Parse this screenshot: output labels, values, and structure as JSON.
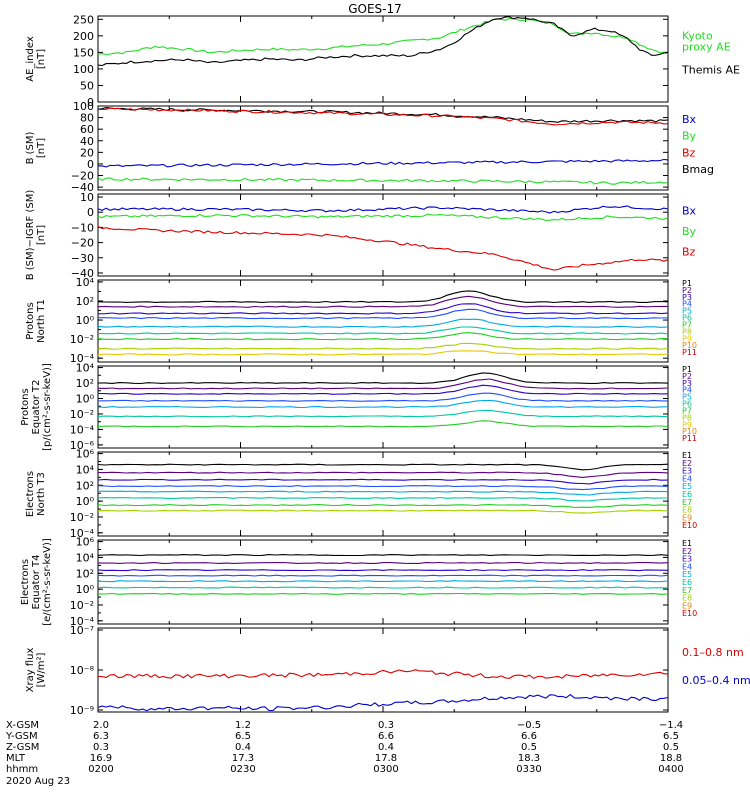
{
  "title": "GOES-17",
  "date_label": "2020 Aug 23",
  "colors": {
    "black": "#000000",
    "green": "#22dd22",
    "blue": "#0000cc",
    "red": "#dd0000",
    "p_series": [
      "#000000",
      "#5a0080",
      "#2a00c8",
      "#1f4fff",
      "#00a8e8",
      "#00c8a0",
      "#22cc22",
      "#a8d200",
      "#e8c800",
      "#f08000",
      "#c80000"
    ]
  },
  "chart_data": [
    {
      "id": "ae",
      "type": "line",
      "ylabel": "AE_index\n[nT]",
      "yscale": "linear",
      "ylim": [
        0,
        260
      ],
      "ticks": [
        "0",
        "50",
        "100",
        "150",
        "200",
        "250"
      ],
      "tick_values": [
        0,
        50,
        100,
        150,
        200,
        250
      ],
      "legend": [
        {
          "text": "Kyoto\nproxy AE",
          "color": "green"
        },
        {
          "text": "Themis AE",
          "color": "black"
        }
      ],
      "series": [
        {
          "name": "Kyoto proxy AE",
          "color": "green",
          "x": [
            0,
            0.05,
            0.1,
            0.15,
            0.2,
            0.25,
            0.3,
            0.35,
            0.4,
            0.45,
            0.5,
            0.55,
            0.6,
            0.65,
            0.68,
            0.7,
            0.75,
            0.8,
            0.83,
            0.87,
            0.9,
            0.93,
            0.95,
            0.97,
            1.0
          ],
          "y": [
            145,
            150,
            168,
            160,
            150,
            156,
            160,
            158,
            162,
            170,
            175,
            185,
            195,
            225,
            240,
            250,
            250,
            235,
            205,
            210,
            200,
            195,
            175,
            160,
            145
          ]
        },
        {
          "name": "Themis AE",
          "color": "black",
          "x": [
            0,
            0.05,
            0.1,
            0.15,
            0.2,
            0.25,
            0.3,
            0.35,
            0.4,
            0.45,
            0.5,
            0.55,
            0.6,
            0.62,
            0.65,
            0.68,
            0.7,
            0.75,
            0.8,
            0.83,
            0.87,
            0.9,
            0.93,
            0.95,
            0.97,
            1.0
          ],
          "y": [
            110,
            120,
            125,
            128,
            118,
            125,
            130,
            126,
            135,
            140,
            140,
            140,
            160,
            175,
            210,
            240,
            255,
            255,
            235,
            200,
            220,
            215,
            190,
            160,
            140,
            150
          ]
        }
      ]
    },
    {
      "id": "bsm",
      "type": "line",
      "ylabel": "B (SM)\n[nT]",
      "yscale": "linear",
      "ylim": [
        -45,
        100
      ],
      "ticks": [
        "100",
        "80",
        "60",
        "40",
        "20",
        "0",
        "−20",
        "−40"
      ],
      "tick_values": [
        100,
        80,
        60,
        40,
        20,
        0,
        -20,
        -40
      ],
      "legend": [
        {
          "text": "Bx",
          "color": "blue"
        },
        {
          "text": "By",
          "color": "green"
        },
        {
          "text": "Bz",
          "color": "red"
        },
        {
          "text": "Bmag",
          "color": "black"
        }
      ],
      "series": [
        {
          "name": "Bmag",
          "color": "black",
          "x": [
            0,
            0.2,
            0.4,
            0.6,
            0.7,
            0.8,
            0.9,
            1.0
          ],
          "y": [
            96,
            93,
            90,
            85,
            80,
            73,
            75,
            74
          ]
        },
        {
          "name": "Bz",
          "color": "red",
          "x": [
            0,
            0.2,
            0.4,
            0.6,
            0.7,
            0.8,
            0.9,
            1.0
          ],
          "y": [
            95,
            92,
            88,
            83,
            78,
            69,
            72,
            71
          ]
        },
        {
          "name": "Bx",
          "color": "blue",
          "x": [
            0,
            0.2,
            0.4,
            0.6,
            0.8,
            1.0
          ],
          "y": [
            -4,
            -2,
            0,
            2,
            4,
            6
          ]
        },
        {
          "name": "By",
          "color": "green",
          "x": [
            0,
            0.2,
            0.4,
            0.6,
            0.8,
            0.9,
            1.0
          ],
          "y": [
            -26,
            -27,
            -28,
            -29,
            -31,
            -33,
            -31
          ]
        }
      ]
    },
    {
      "id": "bigrf",
      "type": "line",
      "ylabel": "B (SM)−IGRF (SM)\n[nT]",
      "yscale": "linear",
      "ylim": [
        -42,
        12
      ],
      "ticks": [
        "10",
        "0",
        "−10",
        "−20",
        "−30",
        "−40"
      ],
      "tick_values": [
        10,
        0,
        -10,
        -20,
        -30,
        -40
      ],
      "legend": [
        {
          "text": "Bx",
          "color": "blue"
        },
        {
          "text": "By",
          "color": "green"
        },
        {
          "text": "Bz",
          "color": "red"
        }
      ],
      "series": [
        {
          "name": "Bx",
          "color": "blue",
          "x": [
            0,
            0.2,
            0.4,
            0.6,
            0.8,
            0.9,
            1.0
          ],
          "y": [
            2,
            2,
            1,
            3,
            0,
            4,
            2
          ]
        },
        {
          "name": "By",
          "color": "green",
          "x": [
            0,
            0.2,
            0.4,
            0.6,
            0.8,
            0.9,
            1.0
          ],
          "y": [
            -3,
            -2,
            -3,
            -2,
            -5,
            -3,
            -4
          ]
        },
        {
          "name": "Bz",
          "color": "red",
          "x": [
            0,
            0.1,
            0.2,
            0.3,
            0.4,
            0.5,
            0.6,
            0.7,
            0.75,
            0.8,
            0.85,
            0.9,
            0.95,
            1.0
          ],
          "y": [
            -10,
            -12,
            -13,
            -14,
            -15,
            -19,
            -24,
            -28,
            -33,
            -38,
            -35,
            -33,
            -31,
            -32
          ]
        }
      ]
    },
    {
      "id": "pn",
      "type": "line",
      "ylabel": "Protons\nNorth T1",
      "yscale": "log",
      "ylim": [
        -4.4,
        4.2
      ],
      "ticks": [
        "10⁴",
        "10²",
        "10⁰",
        "10⁻²",
        "10⁻⁴"
      ],
      "tick_values": [
        4,
        2,
        0,
        -2,
        -4
      ],
      "legend": [
        {
          "text": "P1",
          "color": 0
        },
        {
          "text": "P2",
          "color": 1
        },
        {
          "text": "P3",
          "color": 2
        },
        {
          "text": "P4",
          "color": 3
        },
        {
          "text": "P5",
          "color": 4
        },
        {
          "text": "P6",
          "color": 5
        },
        {
          "text": "P7",
          "color": 6
        },
        {
          "text": "P8",
          "color": 7
        },
        {
          "text": "P9",
          "color": 8
        },
        {
          "text": "P10",
          "color": 9
        },
        {
          "text": "P11",
          "color": 10
        }
      ],
      "levels": [
        1.9,
        1.4,
        0.7,
        0.2,
        -0.7,
        -1.4,
        -2.0,
        -3.0,
        -3.6
      ],
      "bump_x": 0.65,
      "bump_h": 1.2
    },
    {
      "id": "pe",
      "type": "line",
      "ylabel": "Protons\nEquator T2\n[p/(cm²-s-sr-keV)]",
      "yscale": "log",
      "ylim": [
        -6.4,
        4.2
      ],
      "ticks": [
        "10⁴",
        "10²",
        "10⁰",
        "10⁻²",
        "10⁻⁴",
        "10⁻⁶"
      ],
      "tick_values": [
        4,
        2,
        0,
        -2,
        -4,
        -6
      ],
      "legend": [
        {
          "text": "P1",
          "color": 0
        },
        {
          "text": "P2",
          "color": 1
        },
        {
          "text": "P3",
          "color": 2
        },
        {
          "text": "P4",
          "color": 3
        },
        {
          "text": "P5",
          "color": 4
        },
        {
          "text": "P6",
          "color": 5
        },
        {
          "text": "P7",
          "color": 6
        },
        {
          "text": "P8",
          "color": 7
        },
        {
          "text": "P9",
          "color": 8
        },
        {
          "text": "P10",
          "color": 9
        },
        {
          "text": "P11",
          "color": 10
        }
      ],
      "levels": [
        2.0,
        1.3,
        0.6,
        -0.3,
        -1.1,
        -2.3,
        -3.6
      ],
      "bump_x": 0.68,
      "bump_h": 1.3
    },
    {
      "id": "en",
      "type": "line",
      "ylabel": "Electrons\nNorth T3",
      "yscale": "log",
      "ylim": [
        -4.4,
        6.2
      ],
      "ticks": [
        "10⁶",
        "10⁴",
        "10²",
        "10⁰",
        "10⁻²",
        "10⁻⁴"
      ],
      "tick_values": [
        6,
        4,
        2,
        0,
        -2,
        -4
      ],
      "legend": [
        {
          "text": "E1",
          "color": 0
        },
        {
          "text": "E2",
          "color": 1
        },
        {
          "text": "E3",
          "color": 2
        },
        {
          "text": "E4",
          "color": 3
        },
        {
          "text": "E5",
          "color": 4
        },
        {
          "text": "E6",
          "color": 5
        },
        {
          "text": "E7",
          "color": 6
        },
        {
          "text": "E8",
          "color": 7
        },
        {
          "text": "E9",
          "color": 9
        },
        {
          "text": "E10",
          "color": 10
        }
      ],
      "levels": [
        4.6,
        3.6,
        2.7,
        1.9,
        1.2,
        0.4,
        -0.5,
        -1.2
      ],
      "bump_x": 0.85,
      "bump_h": -0.6
    },
    {
      "id": "ee",
      "type": "line",
      "ylabel": "Electrons\nEquator T4\n[e/(cm²-s-sr-keV)]",
      "yscale": "log",
      "ylim": [
        -4.4,
        6.2
      ],
      "ticks": [
        "10⁶",
        "10⁴",
        "10²",
        "10⁰",
        "10⁻²",
        "10⁻⁴"
      ],
      "tick_values": [
        6,
        4,
        2,
        0,
        -2,
        -4
      ],
      "legend": [
        {
          "text": "E1",
          "color": 0
        },
        {
          "text": "E2",
          "color": 1
        },
        {
          "text": "E3",
          "color": 2
        },
        {
          "text": "E4",
          "color": 3
        },
        {
          "text": "E5",
          "color": 4
        },
        {
          "text": "E6",
          "color": 5
        },
        {
          "text": "E7",
          "color": 6
        },
        {
          "text": "E8",
          "color": 7
        },
        {
          "text": "E9",
          "color": 9
        },
        {
          "text": "E10",
          "color": 10
        }
      ],
      "levels": [
        4.3,
        3.3,
        2.4,
        1.7,
        1.0,
        0.2,
        -0.6
      ],
      "bump_x": 0.8,
      "bump_h": 0.0
    },
    {
      "id": "xray",
      "type": "line",
      "ylabel": "Xray flux\n[W/m²]",
      "yscale": "log",
      "ylim": [
        -9.05,
        -6.95
      ],
      "ticks": [
        "10⁻⁷",
        "10⁻⁸",
        "10⁻⁹"
      ],
      "tick_values": [
        -7,
        -8,
        -9
      ],
      "legend": [
        {
          "text": "0.1–0.8 nm",
          "color": "red"
        },
        {
          "text": "0.05–0.4 nm",
          "color": "blue"
        }
      ],
      "series": [
        {
          "name": "0.1-0.8 nm",
          "color": "red",
          "x": [
            0,
            0.2,
            0.4,
            0.55,
            0.6,
            0.7,
            0.8,
            0.9,
            1.0
          ],
          "y": [
            -8.15,
            -8.15,
            -8.12,
            -8.02,
            -8.08,
            -8.16,
            -8.18,
            -8.12,
            -8.08
          ]
        },
        {
          "name": "0.05-0.4 nm",
          "color": "blue",
          "x": [
            0,
            0.1,
            0.2,
            0.3,
            0.4,
            0.5,
            0.6,
            0.7,
            0.8,
            0.9,
            1.0
          ],
          "y": [
            -8.9,
            -8.98,
            -8.95,
            -8.97,
            -8.93,
            -8.85,
            -8.8,
            -8.7,
            -8.65,
            -8.7,
            -8.72
          ]
        }
      ]
    }
  ],
  "ephemeris": {
    "labels": [
      "X-GSM",
      "Y-GSM",
      "Z-GSM",
      "MLT",
      "hhmm"
    ],
    "columns": [
      {
        "values": [
          "2.0",
          "6.3",
          "0.3",
          "16.9",
          "0200"
        ]
      },
      {
        "values": [
          "1.2",
          "6.5",
          "0.4",
          "17.3",
          "0230"
        ]
      },
      {
        "values": [
          "0.3",
          "6.6",
          "0.4",
          "17.8",
          "0300"
        ]
      },
      {
        "values": [
          "−0.5",
          "6.6",
          "0.5",
          "18.3",
          "0330"
        ]
      },
      {
        "values": [
          "−1.4",
          "6.5",
          "0.5",
          "18.8",
          "0400"
        ]
      }
    ]
  }
}
